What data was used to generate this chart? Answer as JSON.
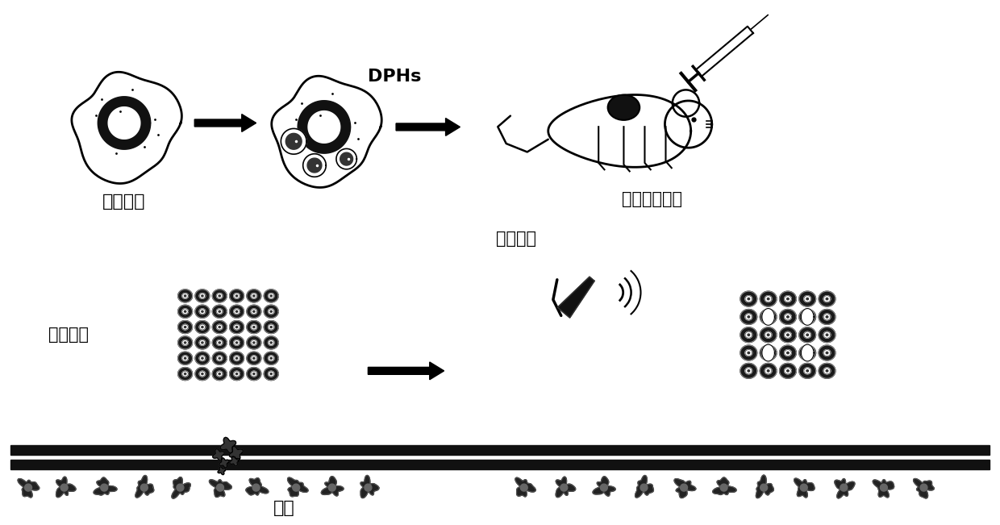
{
  "labels": {
    "macrophage": "巨噬细胞",
    "dphs": "DPHs",
    "mouse": "乳腺癌模型鼠",
    "tumor": "肿瘾细胞",
    "probe": "超声探头",
    "vessel": "血管"
  },
  "bg_color": "#ffffff",
  "line_color": "#000000",
  "figure_width": 12.4,
  "figure_height": 6.51,
  "dpi": 100
}
